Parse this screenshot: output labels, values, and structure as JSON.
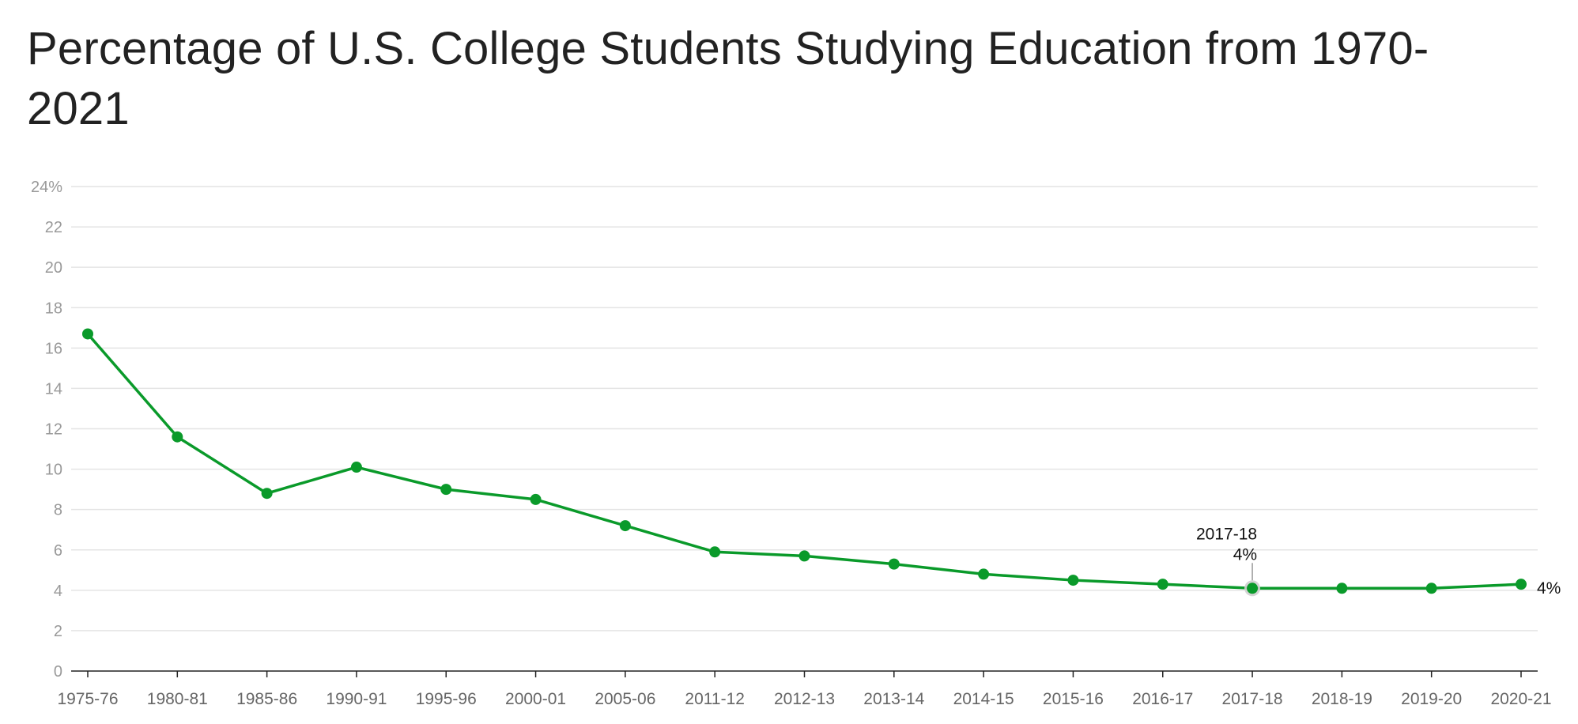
{
  "chart_data": {
    "type": "line",
    "title": "Percentage of U.S. College Students Studying Education from 1970-2021",
    "xlabel": "",
    "ylabel": "",
    "categories": [
      "1975-76",
      "1980-81",
      "1985-86",
      "1990-91",
      "1995-96",
      "2000-01",
      "2005-06",
      "2011-12",
      "2012-13",
      "2013-14",
      "2014-15",
      "2015-16",
      "2016-17",
      "2017-18",
      "2018-19",
      "2019-20",
      "2020-21"
    ],
    "series": [
      {
        "values": [
          16.7,
          11.6,
          8.8,
          10.1,
          9.0,
          8.5,
          7.2,
          5.9,
          5.7,
          5.3,
          4.8,
          4.5,
          4.3,
          4.1,
          4.1,
          4.1,
          4.3
        ]
      }
    ],
    "ylim": [
      0,
      24
    ],
    "y_ticks": [
      0,
      2,
      4,
      6,
      8,
      10,
      12,
      14,
      16,
      18,
      20,
      22,
      24
    ],
    "y_tick_labels": [
      "0",
      "2",
      "4",
      "6",
      "8",
      "10",
      "12",
      "14",
      "16",
      "18",
      "20",
      "22",
      "24%"
    ],
    "grid": true,
    "colors": {
      "line": "#0a9a2a",
      "grid": "#e4e4e4",
      "axis": "#222222"
    },
    "annotations": {
      "highlight": {
        "category": "2017-18",
        "label": "2017-18",
        "value_label": "4%"
      },
      "end_label": "4%"
    }
  }
}
